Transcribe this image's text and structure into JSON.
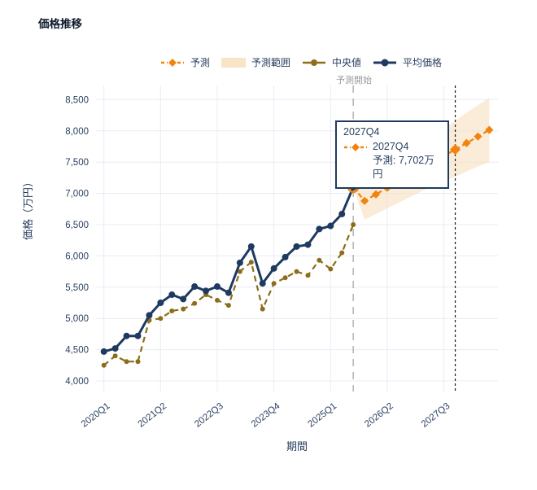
{
  "title": "価格推移",
  "legend": {
    "items": [
      {
        "label": "予測"
      },
      {
        "label": "予測範囲"
      },
      {
        "label": "中央値"
      },
      {
        "label": "平均価格"
      }
    ]
  },
  "annotations": {
    "forecast_start_label": "予測開始"
  },
  "tooltip": {
    "header": "2027Q4",
    "series_label": "2027Q4",
    "value_line": "予測: 7,702万円"
  },
  "x_axis": {
    "title": "期間",
    "tick_labels": [
      "2020Q1",
      "2021Q2",
      "2022Q3",
      "2023Q4",
      "2025Q1",
      "2026Q2",
      "2027Q3"
    ],
    "tick_indices": [
      0,
      5,
      10,
      15,
      20,
      25,
      30
    ]
  },
  "y_axis": {
    "title": "価格（万円）",
    "tick_values": [
      4000,
      4500,
      5000,
      5500,
      6000,
      6500,
      7000,
      7500,
      8000,
      8500
    ],
    "tick_labels": [
      "4,000",
      "4,500",
      "5,000",
      "5,500",
      "6,000",
      "6,500",
      "7,000",
      "7,500",
      "8,000",
      "8,500"
    ]
  },
  "colors": {
    "average": "#1f3a60",
    "median": "#8c6d1a",
    "forecast": "#f0840f",
    "band_fill": "#f7dcba",
    "grid": "#e8ecf4",
    "axis_text": "#2a3f5f",
    "forecast_start_line": "#b3b3b3",
    "hover_line": "#1a1a1a",
    "tooltip_border": "#1f3a60"
  },
  "chart_data": {
    "type": "line",
    "title": "価格推移",
    "xlabel": "期間",
    "ylabel": "価格（万円）",
    "ylim": [
      3850,
      8750
    ],
    "grid": true,
    "legend_position": "top",
    "x_all": [
      "2020Q1",
      "2020Q2",
      "2020Q3",
      "2020Q4",
      "2021Q1",
      "2021Q2",
      "2021Q3",
      "2021Q4",
      "2022Q1",
      "2022Q2",
      "2022Q3",
      "2022Q4",
      "2023Q1",
      "2023Q2",
      "2023Q3",
      "2023Q4",
      "2024Q1",
      "2024Q2",
      "2024Q3",
      "2024Q4",
      "2025Q1",
      "2025Q2",
      "2025Q3",
      "2025Q4",
      "2026Q1",
      "2026Q2",
      "2026Q3",
      "2026Q4",
      "2027Q1",
      "2027Q2",
      "2027Q3",
      "2027Q4",
      "2028Q1",
      "2028Q2",
      "2028Q3"
    ],
    "forecast_start_index": 22,
    "hover_index": 31,
    "hover_value": 7702,
    "series": [
      {
        "name": "平均価格",
        "style": "solid",
        "start_index": 0,
        "values": [
          4470,
          4520,
          4720,
          4720,
          5050,
          5250,
          5380,
          5310,
          5510,
          5440,
          5510,
          5410,
          5890,
          6150,
          5560,
          5800,
          5980,
          6150,
          6180,
          6430,
          6480,
          6670,
          7100
        ]
      },
      {
        "name": "中央値",
        "style": "dashed",
        "start_index": 0,
        "values": [
          4250,
          4400,
          4310,
          4310,
          4970,
          5000,
          5120,
          5150,
          5240,
          5380,
          5290,
          5210,
          5750,
          5900,
          5150,
          5560,
          5650,
          5750,
          5690,
          5930,
          5790,
          6050,
          6500
        ]
      },
      {
        "name": "予測",
        "style": "dash-dot-diamond",
        "start_index": 22,
        "values": [
          7100,
          6880,
          6985,
          7090,
          7190,
          7290,
          7395,
          7500,
          7600,
          7702,
          7805,
          7910,
          8015
        ]
      },
      {
        "name": "予測範囲",
        "style": "band",
        "start_index": 22,
        "upper": [
          7100,
          7120,
          7250,
          7380,
          7510,
          7640,
          7770,
          7900,
          8030,
          8160,
          8290,
          8410,
          8530
        ],
        "lower": [
          7100,
          6580,
          6670,
          6760,
          6850,
          6940,
          7030,
          7110,
          7190,
          7270,
          7350,
          7430,
          7500
        ]
      }
    ]
  }
}
